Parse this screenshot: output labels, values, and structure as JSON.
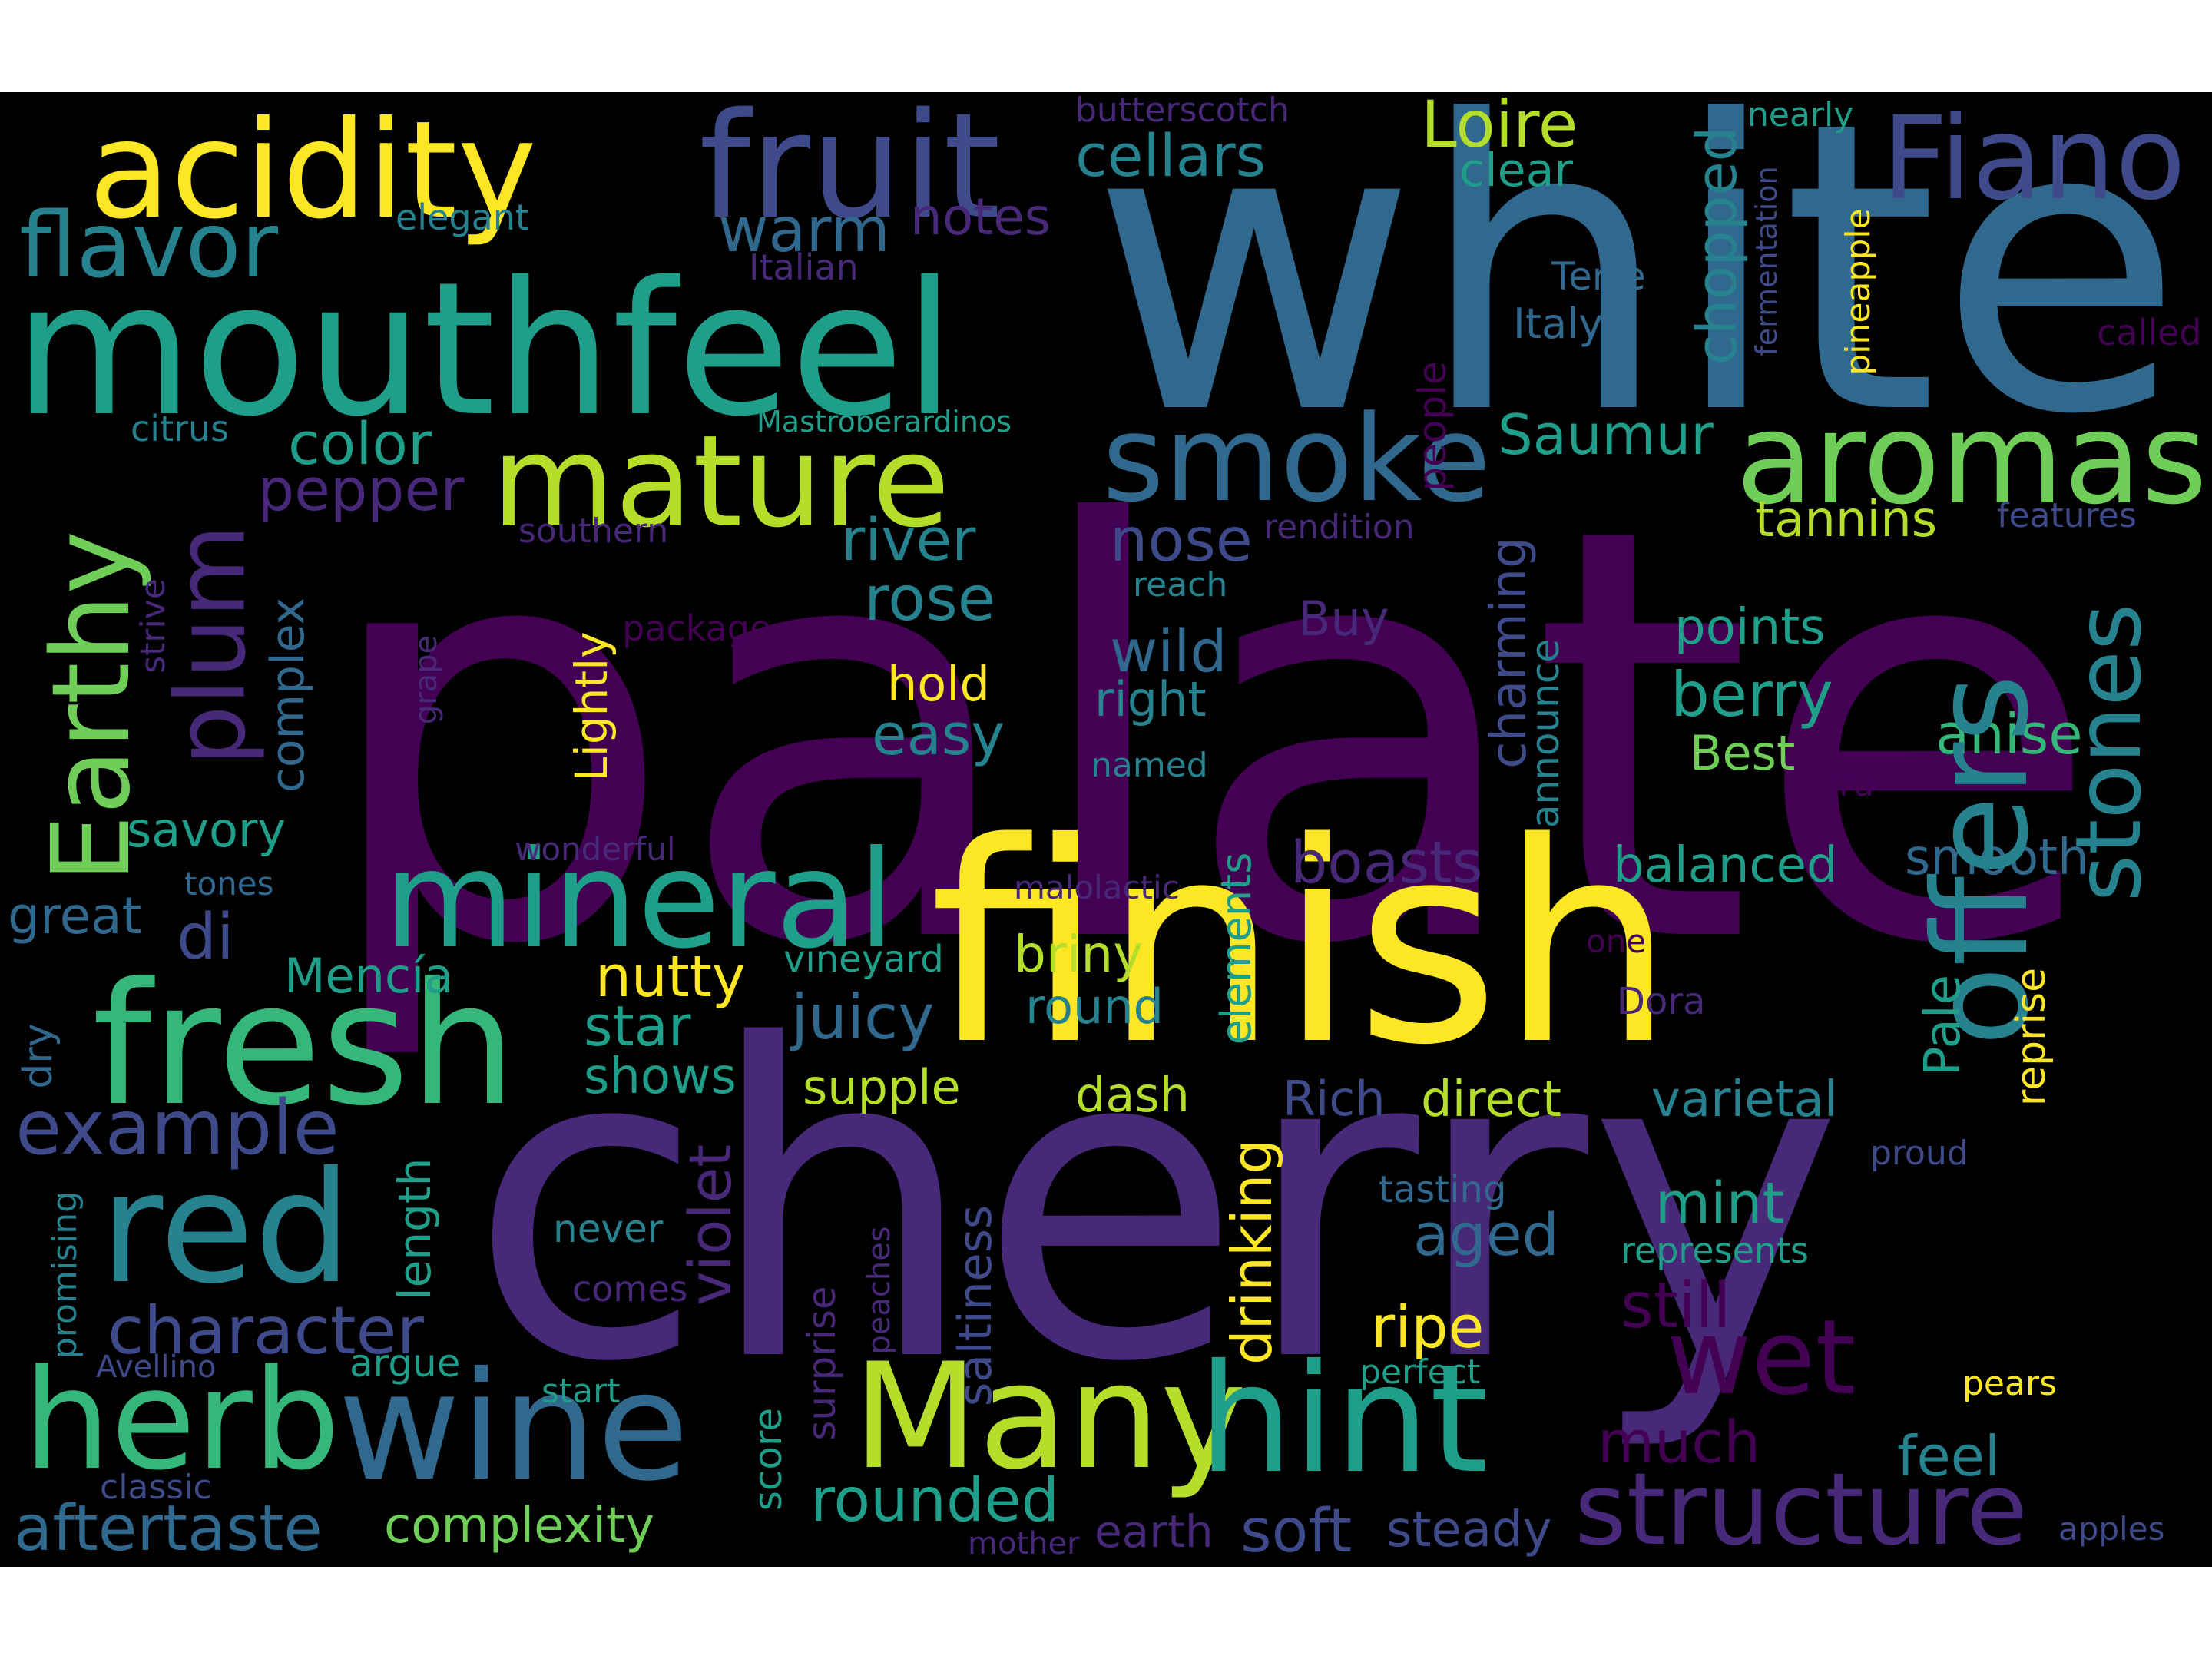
{
  "palette": {
    "c1": "#440154",
    "c2": "#482878",
    "c3": "#3e4a89",
    "c4": "#31688e",
    "c5": "#26828e",
    "c6": "#1f9e89",
    "c7": "#35b779",
    "c8": "#6ece58",
    "c9": "#b5de2b",
    "c10": "#fde725"
  },
  "words": [
    {
      "text": "palate",
      "color": "c1"
    },
    {
      "text": "white",
      "color": "c4"
    },
    {
      "text": "cherry",
      "color": "c2"
    },
    {
      "text": "finish",
      "color": "c10"
    },
    {
      "text": "mouthfeel",
      "color": "c6"
    },
    {
      "text": "fruit",
      "color": "c3"
    },
    {
      "text": "acidity",
      "color": "c10"
    },
    {
      "text": "Fiano",
      "color": "c3"
    },
    {
      "text": "mature",
      "color": "c9"
    },
    {
      "text": "smoke",
      "color": "c4"
    },
    {
      "text": "aromas",
      "color": "c8"
    },
    {
      "text": "mineral",
      "color": "c6"
    },
    {
      "text": "fresh",
      "color": "c7"
    },
    {
      "text": "red",
      "color": "c5"
    },
    {
      "text": "herb",
      "color": "c7"
    },
    {
      "text": "wine",
      "color": "c4"
    },
    {
      "text": "Many",
      "color": "c9"
    },
    {
      "text": "hint",
      "color": "c6"
    },
    {
      "text": "offers",
      "color": "c5"
    },
    {
      "text": "Earthy",
      "color": "c8"
    },
    {
      "text": "plum",
      "color": "c2"
    },
    {
      "text": "flavor",
      "color": "c5"
    },
    {
      "text": "structure",
      "color": "c2"
    },
    {
      "text": "stones",
      "color": "c5"
    },
    {
      "text": "example",
      "color": "c3"
    },
    {
      "text": "wet",
      "color": "c1"
    },
    {
      "text": "character",
      "color": "c3"
    },
    {
      "text": "aftertaste",
      "color": "c4"
    },
    {
      "text": "complexity",
      "color": "c8"
    },
    {
      "text": "rounded",
      "color": "c6"
    },
    {
      "text": "soft",
      "color": "c3"
    },
    {
      "text": "steady",
      "color": "c3"
    },
    {
      "text": "cellars",
      "color": "c5"
    },
    {
      "text": "Loire",
      "color": "c9"
    },
    {
      "text": "warm",
      "color": "c4"
    },
    {
      "text": "notes",
      "color": "c2"
    },
    {
      "text": "color",
      "color": "c6"
    },
    {
      "text": "pepper",
      "color": "c2"
    },
    {
      "text": "Saumur",
      "color": "c6"
    },
    {
      "text": "tannins",
      "color": "c9"
    },
    {
      "text": "river",
      "color": "c5"
    },
    {
      "text": "rose",
      "color": "c5"
    },
    {
      "text": "nose",
      "color": "c3"
    },
    {
      "text": "wild",
      "color": "c4"
    },
    {
      "text": "right",
      "color": "c5"
    },
    {
      "text": "easy",
      "color": "c5"
    },
    {
      "text": "hold",
      "color": "c10"
    },
    {
      "text": "berry",
      "color": "c6"
    },
    {
      "text": "points",
      "color": "c6"
    },
    {
      "text": "anise",
      "color": "c7"
    },
    {
      "text": "Best",
      "color": "c8"
    },
    {
      "text": "boasts",
      "color": "c2"
    },
    {
      "text": "balanced",
      "color": "c6"
    },
    {
      "text": "smooth",
      "color": "c4"
    },
    {
      "text": "di",
      "color": "c3"
    },
    {
      "text": "nutty",
      "color": "c10"
    },
    {
      "text": "briny",
      "color": "c9"
    },
    {
      "text": "juicy",
      "color": "c4"
    },
    {
      "text": "round",
      "color": "c5"
    },
    {
      "text": "star",
      "color": "c6"
    },
    {
      "text": "shows",
      "color": "c6"
    },
    {
      "text": "supple",
      "color": "c9"
    },
    {
      "text": "dash",
      "color": "c9"
    },
    {
      "text": "direct",
      "color": "c9"
    },
    {
      "text": "Rich",
      "color": "c3"
    },
    {
      "text": "varietal",
      "color": "c5"
    },
    {
      "text": "mint",
      "color": "c6"
    },
    {
      "text": "aged",
      "color": "c4"
    },
    {
      "text": "still",
      "color": "c1"
    },
    {
      "text": "ripe",
      "color": "c10"
    },
    {
      "text": "much",
      "color": "c1"
    },
    {
      "text": "feel",
      "color": "c5"
    },
    {
      "text": "earth",
      "color": "c2"
    },
    {
      "text": "Mencía",
      "color": "c6"
    },
    {
      "text": "savory",
      "color": "c6"
    },
    {
      "text": "great",
      "color": "c4"
    },
    {
      "text": "butterscotch",
      "color": "c2"
    },
    {
      "text": "nearly",
      "color": "c6"
    },
    {
      "text": "clear",
      "color": "c6"
    },
    {
      "text": "elegant",
      "color": "c5"
    },
    {
      "text": "Italian",
      "color": "c2"
    },
    {
      "text": "Terre",
      "color": "c4"
    },
    {
      "text": "Italy",
      "color": "c4"
    },
    {
      "text": "called",
      "color": "c1"
    },
    {
      "text": "Mastroberardinos",
      "color": "c6"
    },
    {
      "text": "citrus",
      "color": "c5"
    },
    {
      "text": "southern",
      "color": "c2"
    },
    {
      "text": "rendition",
      "color": "c2"
    },
    {
      "text": "features",
      "color": "c3"
    },
    {
      "text": "reach",
      "color": "c5"
    },
    {
      "text": "package",
      "color": "c1"
    },
    {
      "text": "Buy",
      "color": "c2"
    },
    {
      "text": "named",
      "color": "c5"
    },
    {
      "text": "cru",
      "color": "c1"
    },
    {
      "text": "wonderful",
      "color": "c2"
    },
    {
      "text": "tones",
      "color": "c4"
    },
    {
      "text": "malolactic",
      "color": "c2"
    },
    {
      "text": "vineyard",
      "color": "c6"
    },
    {
      "text": "one",
      "color": "c1"
    },
    {
      "text": "Dora",
      "color": "c2"
    },
    {
      "text": "proud",
      "color": "c3"
    },
    {
      "text": "tasting",
      "color": "c4"
    },
    {
      "text": "represents",
      "color": "c6"
    },
    {
      "text": "never",
      "color": "c5"
    },
    {
      "text": "comes",
      "color": "c2"
    },
    {
      "text": "Avellino",
      "color": "c3"
    },
    {
      "text": "argue",
      "color": "c6"
    },
    {
      "text": "perfect",
      "color": "c6"
    },
    {
      "text": "pears",
      "color": "c10"
    },
    {
      "text": "start",
      "color": "c6"
    },
    {
      "text": "classic",
      "color": "c3"
    },
    {
      "text": "mother",
      "color": "c2"
    },
    {
      "text": "apples",
      "color": "c3"
    },
    {
      "text": "chopped",
      "color": "c5"
    },
    {
      "text": "people",
      "color": "c1"
    },
    {
      "text": "fermentation",
      "color": "c3"
    },
    {
      "text": "pineapple",
      "color": "c10"
    },
    {
      "text": "charming",
      "color": "c3"
    },
    {
      "text": "announce",
      "color": "c5"
    },
    {
      "text": "Lightly",
      "color": "c10"
    },
    {
      "text": "complex",
      "color": "c4"
    },
    {
      "text": "strive",
      "color": "c2"
    },
    {
      "text": "grape",
      "color": "c2"
    },
    {
      "text": "elements",
      "color": "c6"
    },
    {
      "text": "drinking",
      "color": "c10"
    },
    {
      "text": "Pale",
      "color": "c6"
    },
    {
      "text": "reprise",
      "color": "c10"
    },
    {
      "text": "violet",
      "color": "c2"
    },
    {
      "text": "length",
      "color": "c6"
    },
    {
      "text": "dry",
      "color": "c4"
    },
    {
      "text": "promising",
      "color": "c5"
    },
    {
      "text": "saltiness",
      "color": "c3"
    },
    {
      "text": "surprise",
      "color": "c2"
    },
    {
      "text": "peaches",
      "color": "c2"
    },
    {
      "text": "score",
      "color": "c6"
    }
  ]
}
